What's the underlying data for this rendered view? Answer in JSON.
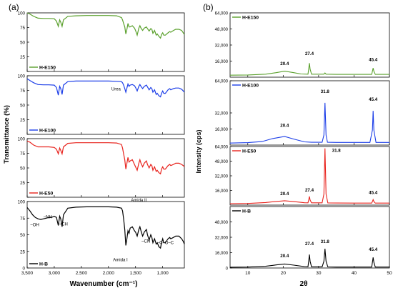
{
  "chart_data": [
    {
      "type": "line",
      "panel_label": "(a)",
      "xlabel": "Wavenumber (cm⁻¹)",
      "ylabel": "Transmittance (%)",
      "xlim": [
        3500,
        600
      ],
      "x_ticks": [
        3500,
        3000,
        2500,
        2000,
        1500,
        1000
      ],
      "x_tick_labels": [
        "3,500",
        "3,000",
        "2,500",
        "2,000",
        "1,500",
        "1,000"
      ],
      "ylim": [
        0,
        100
      ],
      "y_ticks": [
        0,
        25,
        50,
        75,
        100
      ],
      "y_tick_labels": [
        "0",
        "25",
        "50",
        "75",
        "100"
      ],
      "series": [
        {
          "name": "H-E150",
          "color": "#5aa02c",
          "x": [
            3500,
            3450,
            3380,
            3300,
            3200,
            3100,
            3000,
            2960,
            2925,
            2900,
            2880,
            2855,
            2830,
            2750,
            2600,
            2400,
            2200,
            2000,
            1850,
            1760,
            1740,
            1720,
            1700,
            1680,
            1660,
            1640,
            1620,
            1600,
            1560,
            1520,
            1500,
            1470,
            1440,
            1420,
            1400,
            1370,
            1340,
            1300,
            1280,
            1250,
            1220,
            1200,
            1180,
            1150,
            1120,
            1100,
            1070,
            1040,
            1020,
            1000,
            980,
            950,
            900,
            870,
            850,
            800,
            760,
            700,
            650,
            620,
            600
          ],
          "y": [
            100,
            98,
            94,
            91,
            90.5,
            90.5,
            90,
            86,
            77,
            88,
            84,
            77,
            88,
            94,
            95,
            95.5,
            95.5,
            95.5,
            95,
            92,
            88,
            82,
            76,
            64,
            72,
            82,
            76,
            76,
            78,
            74,
            70,
            62,
            74,
            78,
            74,
            70,
            74,
            76,
            73,
            69,
            73,
            72,
            65,
            70,
            62,
            64,
            60,
            57,
            63,
            66,
            62,
            62,
            66,
            68,
            67,
            70,
            72,
            72,
            70,
            66,
            63
          ]
        },
        {
          "name": "H-E100",
          "color": "#1c3ee8",
          "x": [
            3500,
            3450,
            3380,
            3300,
            3200,
            3100,
            3000,
            2960,
            2925,
            2900,
            2880,
            2855,
            2830,
            2750,
            2600,
            2400,
            2200,
            2000,
            1850,
            1760,
            1740,
            1720,
            1700,
            1680,
            1660,
            1640,
            1620,
            1600,
            1560,
            1520,
            1500,
            1470,
            1440,
            1420,
            1400,
            1370,
            1340,
            1300,
            1280,
            1250,
            1220,
            1200,
            1180,
            1150,
            1120,
            1100,
            1070,
            1040,
            1020,
            1000,
            980,
            950,
            900,
            870,
            850,
            800,
            760,
            700,
            650,
            620,
            600
          ],
          "y": [
            95,
            92,
            88,
            85,
            84.5,
            84.5,
            84,
            80,
            67,
            82,
            78,
            68,
            84,
            90,
            91,
            91,
            91,
            91,
            90.5,
            90,
            88,
            84,
            78,
            72,
            79,
            86,
            82,
            84,
            85,
            83,
            80,
            74,
            82,
            85,
            82,
            78,
            82,
            84,
            81,
            76,
            80,
            78,
            72,
            76,
            68,
            70,
            66,
            64,
            70,
            74,
            70,
            70,
            76,
            78,
            76,
            78,
            79,
            79,
            77,
            74,
            72
          ]
        },
        {
          "name": "H-E50",
          "color": "#e8231d",
          "x": [
            3500,
            3450,
            3380,
            3300,
            3200,
            3100,
            3000,
            2960,
            2925,
            2900,
            2880,
            2855,
            2830,
            2750,
            2600,
            2400,
            2200,
            2000,
            1850,
            1760,
            1740,
            1720,
            1700,
            1680,
            1660,
            1640,
            1620,
            1600,
            1560,
            1520,
            1500,
            1470,
            1440,
            1420,
            1400,
            1370,
            1340,
            1300,
            1280,
            1250,
            1220,
            1200,
            1180,
            1150,
            1120,
            1100,
            1070,
            1040,
            1020,
            1000,
            980,
            950,
            900,
            870,
            850,
            800,
            760,
            700,
            650,
            620,
            600
          ],
          "y": [
            96,
            94,
            89,
            86,
            86,
            86,
            85,
            82,
            74,
            84,
            80,
            74,
            86,
            92,
            93,
            93,
            93,
            93,
            92.5,
            90,
            84,
            74,
            64,
            48,
            58,
            68,
            60,
            62,
            64,
            56,
            52,
            46,
            58,
            64,
            58,
            52,
            58,
            62,
            56,
            50,
            56,
            54,
            46,
            52,
            44,
            46,
            42,
            40,
            48,
            52,
            48,
            48,
            54,
            56,
            54,
            56,
            58,
            58,
            56,
            54,
            52
          ]
        },
        {
          "name": "H-B",
          "color": "#000000",
          "x": [
            3500,
            3450,
            3400,
            3350,
            3300,
            3250,
            3200,
            3150,
            3100,
            3050,
            3000,
            2960,
            2925,
            2900,
            2880,
            2855,
            2830,
            2750,
            2600,
            2400,
            2200,
            2000,
            1850,
            1760,
            1740,
            1720,
            1700,
            1680,
            1660,
            1640,
            1620,
            1600,
            1560,
            1520,
            1500,
            1470,
            1440,
            1420,
            1400,
            1370,
            1340,
            1300,
            1280,
            1250,
            1220,
            1200,
            1180,
            1150,
            1120,
            1100,
            1070,
            1040,
            1020,
            1000,
            980,
            950,
            900,
            870,
            850,
            800,
            760,
            700,
            650,
            620,
            600
          ],
          "y": [
            91,
            86,
            80,
            76,
            74,
            73,
            74,
            75,
            76,
            76,
            78,
            76,
            64,
            78,
            74,
            62,
            80,
            90,
            91.5,
            92,
            92,
            92,
            91.5,
            90,
            86,
            74,
            58,
            34,
            44,
            56,
            52,
            60,
            62,
            56,
            54,
            48,
            58,
            62,
            56,
            48,
            54,
            58,
            50,
            42,
            50,
            46,
            38,
            44,
            36,
            38,
            32,
            30,
            38,
            44,
            38,
            38,
            44,
            46,
            44,
            46,
            48,
            48,
            44,
            40,
            36
          ]
        }
      ],
      "annotations": [
        {
          "text": "Urea",
          "x": 1860,
          "y": 75,
          "series": "H-E100"
        },
        {
          "text": "–OH",
          "x": 3360,
          "y": 63,
          "series": "H-B"
        },
        {
          "text": "–NH",
          "x": 3120,
          "y": 75,
          "series": "H-B"
        },
        {
          "text": "–CH",
          "x": 2830,
          "y": 64,
          "series": "H-B"
        },
        {
          "text": "Amida II",
          "x": 1440,
          "y": 100,
          "series": "H-B"
        },
        {
          "text": "Amida I",
          "x": 1780,
          "y": 10,
          "series": "H-B"
        },
        {
          "text": "–CN",
          "x": 1310,
          "y": 38,
          "series": "H-B"
        },
        {
          "text": "–C–O–C",
          "x": 950,
          "y": 36,
          "series": "H-B"
        }
      ]
    },
    {
      "type": "line",
      "panel_label": "(b)",
      "xlabel": "2θ",
      "ylabel": "Intensity (cps)",
      "xlim": [
        5,
        50
      ],
      "x_ticks": [
        10,
        20,
        30,
        40,
        50
      ],
      "x_tick_labels": [
        "10",
        "20",
        "30",
        "40",
        "50"
      ],
      "panels": [
        {
          "name": "H-E150",
          "ylim": [
            0,
            64000
          ],
          "y_ticks": [
            16000,
            32000,
            48000,
            64000
          ],
          "y_tick_labels": [
            "16,000",
            "32,000",
            "48,000",
            "64,000"
          ]
        },
        {
          "name": "H-E100",
          "ylim": [
            0,
            64000
          ],
          "y_ticks": [
            16000,
            32000,
            64000
          ],
          "y_tick_labels": [
            "16,000",
            "32,000",
            "64,000"
          ]
        },
        {
          "name": "H-E50",
          "ylim": [
            0,
            64000
          ],
          "y_ticks": [
            16000,
            32000,
            48000,
            64000
          ],
          "y_tick_labels": [
            "16,000",
            "32,000",
            "48,000",
            "64,000"
          ]
        },
        {
          "name": "H-B",
          "ylim": [
            0,
            64000
          ],
          "y_ticks": [
            0,
            16000,
            32000,
            48000
          ],
          "y_tick_labels": [
            "0",
            "16,000",
            "32,000",
            "48,000"
          ]
        }
      ],
      "series": [
        {
          "name": "H-E150",
          "color": "#5aa02c",
          "x": [
            5,
            10,
            15,
            18,
            20.4,
            23,
            25,
            27,
            27.2,
            27.4,
            27.6,
            28,
            31.5,
            31.8,
            32.1,
            35,
            40,
            45,
            45.2,
            45.4,
            45.6,
            46,
            50
          ],
          "y": [
            2000,
            2200,
            3000,
            4500,
            6000,
            4500,
            3200,
            3000,
            8000,
            14000,
            8000,
            3000,
            3000,
            4200,
            3000,
            2800,
            2800,
            2800,
            6000,
            9000,
            6000,
            2800,
            2800
          ]
        },
        {
          "name": "H-E100",
          "color": "#1c3ee8",
          "x": [
            5,
            10,
            14,
            17,
            20.4,
            23,
            26,
            28,
            31,
            31.5,
            31.8,
            32.1,
            32.5,
            35,
            40,
            44.5,
            45.2,
            45.4,
            45.6,
            46.2,
            50
          ],
          "y": [
            2000,
            2400,
            3500,
            6500,
            8500,
            6000,
            3200,
            2800,
            2800,
            10000,
            42000,
            10000,
            2800,
            2600,
            2600,
            2600,
            15000,
            34000,
            15000,
            2600,
            2600
          ]
        },
        {
          "name": "H-E50",
          "color": "#e8231d",
          "x": [
            5,
            10,
            15,
            18,
            20.4,
            23,
            26,
            27,
            27.2,
            27.4,
            27.6,
            28,
            31,
            31.5,
            31.8,
            32.1,
            32.6,
            35,
            40,
            45,
            45.2,
            45.4,
            45.6,
            46,
            50
          ],
          "y": [
            1500,
            1800,
            2800,
            4000,
            4800,
            3800,
            2600,
            2500,
            5500,
            9500,
            5500,
            2500,
            2500,
            12000,
            62000,
            12000,
            2400,
            2300,
            2200,
            2200,
            4000,
            6000,
            4000,
            2200,
            2200
          ]
        },
        {
          "name": "H-B",
          "color": "#000000",
          "x": [
            5,
            10,
            15,
            18,
            20.4,
            23,
            26,
            27,
            27.2,
            27.4,
            27.6,
            28,
            31,
            31.5,
            31.8,
            32.1,
            32.6,
            35,
            40,
            45,
            45.2,
            45.4,
            45.6,
            46,
            50
          ],
          "y": [
            800,
            1000,
            1800,
            3200,
            4200,
            3000,
            1400,
            1300,
            7000,
            14000,
            7000,
            1200,
            1200,
            7000,
            20000,
            7000,
            1100,
            1000,
            1000,
            1000,
            6000,
            11000,
            6000,
            1000,
            1000
          ]
        }
      ],
      "annotations": [
        {
          "text": "20.4",
          "x": 20.4,
          "y": 12000,
          "series": "H-E150"
        },
        {
          "text": "27.4",
          "x": 27.4,
          "y": 22000,
          "series": "H-E150"
        },
        {
          "text": "45.4",
          "x": 45.4,
          "y": 16000,
          "series": "H-E150"
        },
        {
          "text": "31.8",
          "x": 31.8,
          "y": 52000,
          "series": "H-E100"
        },
        {
          "text": "20.4",
          "x": 20.4,
          "y": 18000,
          "series": "H-E100"
        },
        {
          "text": "45.4",
          "x": 45.4,
          "y": 44000,
          "series": "H-E100"
        },
        {
          "text": "31.8",
          "x": 35.0,
          "y": 58000,
          "series": "H-E50"
        },
        {
          "text": "27.4",
          "x": 27.4,
          "y": 15000,
          "series": "H-E50"
        },
        {
          "text": "20.4",
          "x": 20.4,
          "y": 11000,
          "series": "H-E50"
        },
        {
          "text": "45.4",
          "x": 45.4,
          "y": 12000,
          "series": "H-E50"
        },
        {
          "text": "27.4",
          "x": 27.4,
          "y": 24000,
          "series": "H-B"
        },
        {
          "text": "31.8",
          "x": 31.8,
          "y": 26000,
          "series": "H-B"
        },
        {
          "text": "20.4",
          "x": 20.4,
          "y": 11000,
          "series": "H-B"
        },
        {
          "text": "45.4",
          "x": 45.4,
          "y": 18000,
          "series": "H-B"
        }
      ]
    }
  ]
}
